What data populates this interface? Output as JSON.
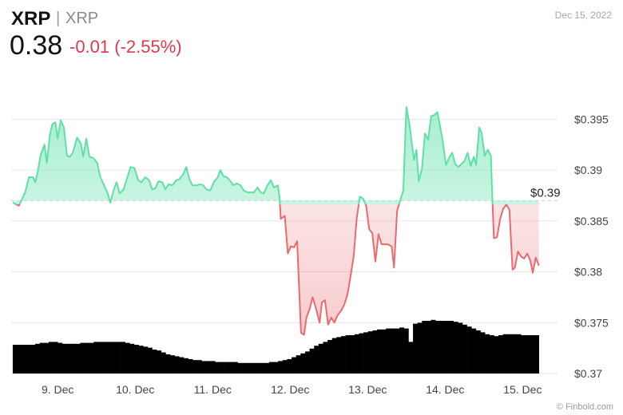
{
  "header": {
    "symbol": "XRP",
    "separator": "|",
    "name": "XRP",
    "price": "0.38",
    "change": "-0.01 (-2.55%)",
    "date": "Dec 15, 2022"
  },
  "credit": "© Finbold.com",
  "colors": {
    "up": "#5fe0a8",
    "down": "#ea6a6e",
    "change_text": "#e0394a",
    "volume": "#000000",
    "grid": "#e6e6e6"
  },
  "chart_data": {
    "type": "line",
    "title": "",
    "xlabel": "",
    "ylabel": "",
    "ylim": [
      0.37,
      0.3995
    ],
    "y_ticks": [
      0.395,
      0.39,
      0.385,
      0.38,
      0.375,
      0.37
    ],
    "y_tick_labels": [
      "$0.395",
      "$0.39",
      "$0.385",
      "$0.38",
      "$0.375",
      "$0.37"
    ],
    "x_tick_labels": [
      "9. Dec",
      "10. Dec",
      "11. Dec",
      "12. Dec",
      "13. Dec",
      "14. Dec",
      "15. Dec"
    ],
    "x_range": [
      8.4,
      15.45
    ],
    "baseline": 0.387,
    "baseline_label": "$0.39",
    "price_points": [
      [
        8.42,
        0.3868
      ],
      [
        8.5,
        0.3865
      ],
      [
        8.58,
        0.3878
      ],
      [
        8.63,
        0.3893
      ],
      [
        8.68,
        0.3893
      ],
      [
        8.71,
        0.3888
      ],
      [
        8.74,
        0.3897
      ],
      [
        8.78,
        0.3915
      ],
      [
        8.83,
        0.3925
      ],
      [
        8.86,
        0.3907
      ],
      [
        8.9,
        0.3935
      ],
      [
        8.93,
        0.3945
      ],
      [
        8.97,
        0.3947
      ],
      [
        9.0,
        0.3931
      ],
      [
        9.04,
        0.3949
      ],
      [
        9.08,
        0.3942
      ],
      [
        9.12,
        0.3914
      ],
      [
        9.16,
        0.3913
      ],
      [
        9.2,
        0.3918
      ],
      [
        9.25,
        0.3932
      ],
      [
        9.3,
        0.3926
      ],
      [
        9.33,
        0.3913
      ],
      [
        9.37,
        0.3931
      ],
      [
        9.41,
        0.3913
      ],
      [
        9.46,
        0.3912
      ],
      [
        9.51,
        0.3907
      ],
      [
        9.55,
        0.3893
      ],
      [
        9.6,
        0.3885
      ],
      [
        9.64,
        0.3878
      ],
      [
        9.68,
        0.3868
      ],
      [
        9.72,
        0.388
      ],
      [
        9.76,
        0.3888
      ],
      [
        9.8,
        0.3877
      ],
      [
        9.85,
        0.3881
      ],
      [
        9.9,
        0.3893
      ],
      [
        9.94,
        0.3903
      ],
      [
        9.99,
        0.3902
      ],
      [
        10.04,
        0.389
      ],
      [
        10.08,
        0.3888
      ],
      [
        10.13,
        0.3893
      ],
      [
        10.18,
        0.389
      ],
      [
        10.22,
        0.3881
      ],
      [
        10.26,
        0.3882
      ],
      [
        10.3,
        0.3889
      ],
      [
        10.35,
        0.3888
      ],
      [
        10.39,
        0.3881
      ],
      [
        10.43,
        0.3886
      ],
      [
        10.48,
        0.3885
      ],
      [
        10.53,
        0.389
      ],
      [
        10.57,
        0.3891
      ],
      [
        10.62,
        0.3896
      ],
      [
        10.66,
        0.3903
      ],
      [
        10.7,
        0.3891
      ],
      [
        10.74,
        0.3885
      ],
      [
        10.79,
        0.3885
      ],
      [
        10.84,
        0.3886
      ],
      [
        10.88,
        0.3885
      ],
      [
        10.92,
        0.3881
      ],
      [
        10.97,
        0.388
      ],
      [
        11.02,
        0.3889
      ],
      [
        11.06,
        0.3892
      ],
      [
        11.1,
        0.39
      ],
      [
        11.14,
        0.3894
      ],
      [
        11.18,
        0.3893
      ],
      [
        11.22,
        0.389
      ],
      [
        11.27,
        0.3885
      ],
      [
        11.31,
        0.3887
      ],
      [
        11.36,
        0.3885
      ],
      [
        11.4,
        0.388
      ],
      [
        11.45,
        0.3878
      ],
      [
        11.49,
        0.3878
      ],
      [
        11.53,
        0.3878
      ],
      [
        11.58,
        0.3883
      ],
      [
        11.62,
        0.3878
      ],
      [
        11.66,
        0.3877
      ],
      [
        11.7,
        0.3884
      ],
      [
        11.75,
        0.389
      ],
      [
        11.79,
        0.3883
      ],
      [
        11.84,
        0.3885
      ],
      [
        11.86,
        0.3875
      ],
      [
        11.88,
        0.3852
      ],
      [
        11.93,
        0.3855
      ],
      [
        11.97,
        0.3818
      ],
      [
        12.01,
        0.3825
      ],
      [
        12.05,
        0.3824
      ],
      [
        12.09,
        0.383
      ],
      [
        12.14,
        0.374
      ],
      [
        12.18,
        0.3738
      ],
      [
        12.21,
        0.3755
      ],
      [
        12.25,
        0.3763
      ],
      [
        12.29,
        0.3775
      ],
      [
        12.33,
        0.3765
      ],
      [
        12.38,
        0.375
      ],
      [
        12.41,
        0.377
      ],
      [
        12.45,
        0.3772
      ],
      [
        12.49,
        0.3748
      ],
      [
        12.53,
        0.3755
      ],
      [
        12.57,
        0.375
      ],
      [
        12.61,
        0.3757
      ],
      [
        12.66,
        0.3762
      ],
      [
        12.7,
        0.3768
      ],
      [
        12.74,
        0.3778
      ],
      [
        12.78,
        0.3796
      ],
      [
        12.82,
        0.3815
      ],
      [
        12.86,
        0.3853
      ],
      [
        12.9,
        0.3874
      ],
      [
        12.94,
        0.3872
      ],
      [
        12.98,
        0.3865
      ],
      [
        13.02,
        0.3842
      ],
      [
        13.06,
        0.3838
      ],
      [
        13.1,
        0.381
      ],
      [
        13.14,
        0.3837
      ],
      [
        13.18,
        0.3827
      ],
      [
        13.22,
        0.3827
      ],
      [
        13.26,
        0.3827
      ],
      [
        13.31,
        0.3825
      ],
      [
        13.34,
        0.3804
      ],
      [
        13.38,
        0.386
      ],
      [
        13.42,
        0.387
      ],
      [
        13.46,
        0.388
      ],
      [
        13.5,
        0.3962
      ],
      [
        13.54,
        0.3945
      ],
      [
        13.57,
        0.3926
      ],
      [
        13.6,
        0.391
      ],
      [
        13.63,
        0.392
      ],
      [
        13.66,
        0.3889
      ],
      [
        13.7,
        0.3901
      ],
      [
        13.74,
        0.3936
      ],
      [
        13.78,
        0.393
      ],
      [
        13.82,
        0.3953
      ],
      [
        13.86,
        0.3954
      ],
      [
        13.9,
        0.3957
      ],
      [
        13.93,
        0.3945
      ],
      [
        13.97,
        0.3928
      ],
      [
        14.01,
        0.3905
      ],
      [
        14.05,
        0.3912
      ],
      [
        14.09,
        0.3917
      ],
      [
        14.13,
        0.3906
      ],
      [
        14.17,
        0.3903
      ],
      [
        14.21,
        0.3906
      ],
      [
        14.25,
        0.3909
      ],
      [
        14.29,
        0.3917
      ],
      [
        14.33,
        0.3904
      ],
      [
        14.37,
        0.3913
      ],
      [
        14.4,
        0.3905
      ],
      [
        14.44,
        0.3942
      ],
      [
        14.47,
        0.3937
      ],
      [
        14.51,
        0.3914
      ],
      [
        14.55,
        0.392
      ],
      [
        14.59,
        0.3914
      ],
      [
        14.61,
        0.387
      ],
      [
        14.63,
        0.3833
      ],
      [
        14.67,
        0.3834
      ],
      [
        14.71,
        0.3852
      ],
      [
        14.75,
        0.3862
      ],
      [
        14.79,
        0.3866
      ],
      [
        14.83,
        0.3861
      ],
      [
        14.87,
        0.3802
      ],
      [
        14.9,
        0.3804
      ],
      [
        14.94,
        0.382
      ],
      [
        14.98,
        0.3815
      ],
      [
        15.02,
        0.3813
      ],
      [
        15.06,
        0.3818
      ],
      [
        15.1,
        0.3811
      ],
      [
        15.13,
        0.3799
      ],
      [
        15.17,
        0.3814
      ],
      [
        15.21,
        0.3806
      ]
    ],
    "volume": {
      "description": "relative trading volume bars (0-1)",
      "x_start": 8.42,
      "x_end": 15.21,
      "values": [
        0.3,
        0.3,
        0.3,
        0.3,
        0.3,
        0.31,
        0.32,
        0.32,
        0.33,
        0.33,
        0.32,
        0.31,
        0.31,
        0.31,
        0.31,
        0.32,
        0.32,
        0.32,
        0.33,
        0.33,
        0.33,
        0.33,
        0.33,
        0.33,
        0.33,
        0.32,
        0.31,
        0.3,
        0.29,
        0.28,
        0.27,
        0.25,
        0.24,
        0.22,
        0.2,
        0.19,
        0.18,
        0.17,
        0.16,
        0.15,
        0.14,
        0.14,
        0.13,
        0.13,
        0.13,
        0.12,
        0.12,
        0.12,
        0.12,
        0.12,
        0.11,
        0.11,
        0.11,
        0.11,
        0.11,
        0.11,
        0.11,
        0.12,
        0.12,
        0.13,
        0.14,
        0.15,
        0.17,
        0.19,
        0.21,
        0.23,
        0.26,
        0.29,
        0.31,
        0.33,
        0.35,
        0.37,
        0.38,
        0.39,
        0.4,
        0.4,
        0.41,
        0.42,
        0.43,
        0.44,
        0.45,
        0.46,
        0.46,
        0.47,
        0.47,
        0.47,
        0.48,
        0.47,
        0.33,
        0.52,
        0.53,
        0.55,
        0.55,
        0.56,
        0.55,
        0.55,
        0.55,
        0.55,
        0.54,
        0.53,
        0.51,
        0.49,
        0.47,
        0.45,
        0.43,
        0.41,
        0.4,
        0.39,
        0.4,
        0.41,
        0.41,
        0.41,
        0.41,
        0.4,
        0.4,
        0.4,
        0.4
      ]
    }
  }
}
